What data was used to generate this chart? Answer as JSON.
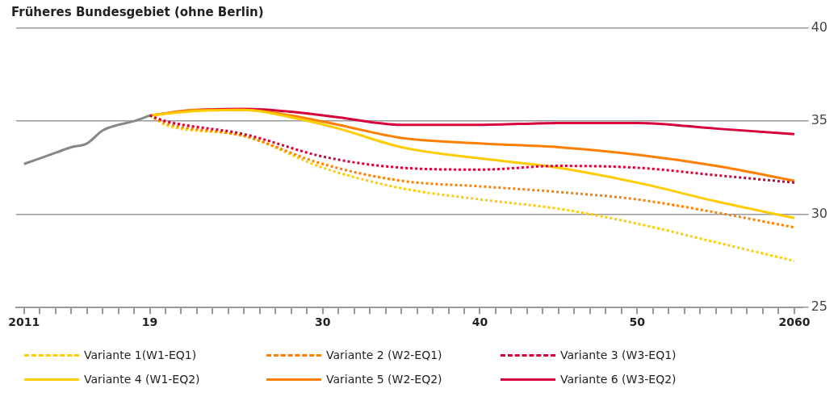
{
  "chart_data": {
    "type": "line",
    "title": "Früheres Bundesgebiet (ohne Berlin)",
    "xlim": [
      2010.5,
      2060.5
    ],
    "xticks": [
      {
        "value": 2011,
        "label": "2011"
      },
      {
        "value": 2012,
        "label": null
      },
      {
        "value": 2013,
        "label": null
      },
      {
        "value": 2014,
        "label": null
      },
      {
        "value": 2015,
        "label": null
      },
      {
        "value": 2016,
        "label": null
      },
      {
        "value": 2017,
        "label": null
      },
      {
        "value": 2018,
        "label": null
      },
      {
        "value": 2019,
        "label": "19"
      },
      {
        "value": 2020,
        "label": null
      },
      {
        "value": 2021,
        "label": null
      },
      {
        "value": 2022,
        "label": null
      },
      {
        "value": 2023,
        "label": null
      },
      {
        "value": 2024,
        "label": null
      },
      {
        "value": 2025,
        "label": null
      },
      {
        "value": 2026,
        "label": null
      },
      {
        "value": 2027,
        "label": null
      },
      {
        "value": 2028,
        "label": null
      },
      {
        "value": 2029,
        "label": null
      },
      {
        "value": 2030,
        "label": "30"
      },
      {
        "value": 2031,
        "label": null
      },
      {
        "value": 2032,
        "label": null
      },
      {
        "value": 2033,
        "label": null
      },
      {
        "value": 2034,
        "label": null
      },
      {
        "value": 2035,
        "label": null
      },
      {
        "value": 2036,
        "label": null
      },
      {
        "value": 2037,
        "label": null
      },
      {
        "value": 2038,
        "label": null
      },
      {
        "value": 2039,
        "label": null
      },
      {
        "value": 2040,
        "label": "40"
      },
      {
        "value": 2041,
        "label": null
      },
      {
        "value": 2042,
        "label": null
      },
      {
        "value": 2043,
        "label": null
      },
      {
        "value": 2044,
        "label": null
      },
      {
        "value": 2045,
        "label": null
      },
      {
        "value": 2046,
        "label": null
      },
      {
        "value": 2047,
        "label": null
      },
      {
        "value": 2048,
        "label": null
      },
      {
        "value": 2049,
        "label": null
      },
      {
        "value": 2050,
        "label": "50"
      },
      {
        "value": 2051,
        "label": null
      },
      {
        "value": 2052,
        "label": null
      },
      {
        "value": 2053,
        "label": null
      },
      {
        "value": 2054,
        "label": null
      },
      {
        "value": 2055,
        "label": null
      },
      {
        "value": 2056,
        "label": null
      },
      {
        "value": 2057,
        "label": null
      },
      {
        "value": 2058,
        "label": null
      },
      {
        "value": 2059,
        "label": null
      },
      {
        "value": 2060,
        "label": "2060"
      }
    ],
    "ylim": [
      25,
      40
    ],
    "yticks": [
      25,
      30,
      35,
      40
    ],
    "grid": "y",
    "legend": "bottom",
    "marker": "none",
    "series": [
      {
        "color": "#888888",
        "line_style": "solid",
        "x": [
          2011,
          2012,
          2013,
          2014,
          2015,
          2016,
          2017,
          2018,
          2019
        ],
        "values": [
          32.7,
          33.0,
          33.3,
          33.6,
          33.8,
          34.5,
          34.8,
          35.0,
          35.3
        ]
      },
      {
        "name": "Variante 1(W1-EQ1)",
        "color": "#ffcc00",
        "line_style": "dotted",
        "x": [
          2019,
          2020,
          2025,
          2030,
          2035,
          2040,
          2045,
          2050,
          2055,
          2060
        ],
        "values": [
          35.3,
          34.8,
          34.2,
          32.5,
          31.4,
          30.8,
          30.3,
          29.5,
          28.5,
          27.5
        ]
      },
      {
        "name": "Variante 2 (W2-EQ1)",
        "color": "#ff7f00",
        "line_style": "dotted",
        "x": [
          2019,
          2020,
          2025,
          2030,
          2035,
          2040,
          2045,
          2050,
          2055,
          2060
        ],
        "values": [
          35.3,
          34.9,
          34.2,
          32.7,
          31.8,
          31.5,
          31.2,
          30.8,
          30.1,
          29.3
        ]
      },
      {
        "name": "Variante 3 (W3-EQ1)",
        "color": "#d6003a",
        "line_style": "dotted",
        "x": [
          2019,
          2020,
          2025,
          2030,
          2035,
          2040,
          2045,
          2050,
          2055,
          2060
        ],
        "values": [
          35.3,
          35.0,
          34.3,
          33.1,
          32.5,
          32.4,
          32.6,
          32.5,
          32.1,
          31.7
        ]
      },
      {
        "name": "Variante 4 (W1-EQ2)",
        "color": "#ffcc00",
        "line_style": "solid",
        "x": [
          2019,
          2022,
          2025,
          2028,
          2031,
          2035,
          2040,
          2045,
          2050,
          2055,
          2060
        ],
        "values": [
          35.3,
          35.55,
          35.6,
          35.2,
          34.6,
          33.6,
          33.0,
          32.5,
          31.7,
          30.7,
          29.8
        ]
      },
      {
        "name": "Variante 5 (W2-EQ2)",
        "color": "#ff7f00",
        "line_style": "solid",
        "x": [
          2019,
          2022,
          2025,
          2028,
          2031,
          2035,
          2040,
          2045,
          2050,
          2055,
          2060
        ],
        "values": [
          35.3,
          35.6,
          35.6,
          35.3,
          34.8,
          34.1,
          33.8,
          33.6,
          33.2,
          32.6,
          31.8
        ]
      },
      {
        "name": "Variante 6 (W3-EQ2)",
        "color": "#d6003a",
        "line_style": "solid",
        "x": [
          2019,
          2022,
          2025,
          2028,
          2031,
          2035,
          2040,
          2045,
          2050,
          2055,
          2060
        ],
        "values": [
          35.3,
          35.6,
          35.65,
          35.5,
          35.2,
          34.8,
          34.8,
          34.9,
          34.9,
          34.6,
          34.3
        ]
      }
    ]
  }
}
